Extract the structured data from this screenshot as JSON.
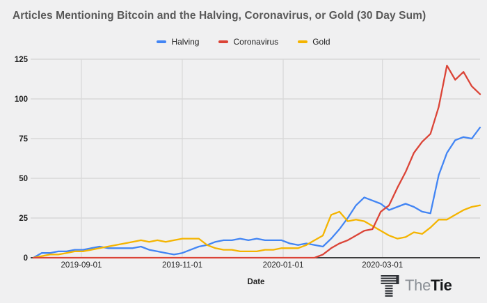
{
  "title": "Articles Mentioning Bitcoin and the Halving, Coronavirus, or Gold (30 Day Sum)",
  "colors": {
    "background": "#f0f0f1",
    "gridline": "#d8d8d8",
    "axis_line": "#3d3d3d",
    "title_text": "#585858",
    "tick_text": "#1f1f1f"
  },
  "footer": {
    "brand_light": "The",
    "brand_bold": "Tie"
  },
  "chart_data": {
    "type": "line",
    "title": "Articles Mentioning Bitcoin and the Halving, Coronavirus, or Gold (30 Day Sum)",
    "xlabel": "Date",
    "ylabel": "",
    "ylim": [
      0,
      125
    ],
    "yticks": [
      0,
      25,
      50,
      75,
      100,
      125
    ],
    "xticks": [
      "2019-09-01",
      "2019-11-01",
      "2020-01-01",
      "2020-03-01"
    ],
    "x_domain": [
      "2019-08-03",
      "2020-04-29"
    ],
    "grid": true,
    "legend_position": "top",
    "x": [
      "2019-08-03",
      "2019-08-08",
      "2019-08-13",
      "2019-08-18",
      "2019-08-23",
      "2019-08-28",
      "2019-09-02",
      "2019-09-07",
      "2019-09-12",
      "2019-09-17",
      "2019-09-22",
      "2019-09-27",
      "2019-10-02",
      "2019-10-07",
      "2019-10-12",
      "2019-10-17",
      "2019-10-22",
      "2019-10-27",
      "2019-11-01",
      "2019-11-06",
      "2019-11-11",
      "2019-11-16",
      "2019-11-21",
      "2019-11-26",
      "2019-12-01",
      "2019-12-06",
      "2019-12-11",
      "2019-12-16",
      "2019-12-21",
      "2019-12-26",
      "2019-12-31",
      "2020-01-05",
      "2020-01-10",
      "2020-01-15",
      "2020-01-20",
      "2020-01-25",
      "2020-01-30",
      "2020-02-04",
      "2020-02-09",
      "2020-02-14",
      "2020-02-19",
      "2020-02-24",
      "2020-02-29",
      "2020-03-05",
      "2020-03-10",
      "2020-03-15",
      "2020-03-20",
      "2020-03-25",
      "2020-03-30",
      "2020-04-04",
      "2020-04-09",
      "2020-04-14",
      "2020-04-19",
      "2020-04-24",
      "2020-04-29"
    ],
    "series": [
      {
        "name": "Halving",
        "color": "#4285F4",
        "values": [
          0,
          3,
          3,
          4,
          4,
          5,
          5,
          6,
          7,
          6,
          6,
          6,
          6,
          7,
          5,
          4,
          3,
          2,
          3,
          5,
          7,
          8,
          10,
          11,
          11,
          12,
          11,
          12,
          11,
          11,
          11,
          9,
          8,
          9,
          8,
          7,
          12,
          18,
          25,
          33,
          38,
          36,
          34,
          30,
          32,
          34,
          32,
          29,
          28,
          52,
          66,
          74,
          76,
          75,
          82
        ]
      },
      {
        "name": "Coronavirus",
        "color": "#DB4437",
        "values": [
          0,
          0,
          0,
          0,
          0,
          0,
          0,
          0,
          0,
          0,
          0,
          0,
          0,
          0,
          0,
          0,
          0,
          0,
          0,
          0,
          0,
          0,
          0,
          0,
          0,
          0,
          0,
          0,
          0,
          0,
          0,
          0,
          0,
          0,
          0,
          2,
          6,
          9,
          11,
          14,
          17,
          18,
          29,
          33,
          44,
          54,
          66,
          73,
          78,
          95,
          121,
          112,
          117,
          108,
          103
        ]
      },
      {
        "name": "Gold",
        "color": "#F4B400",
        "values": [
          0,
          1,
          2,
          2,
          3,
          4,
          4,
          5,
          6,
          7,
          8,
          9,
          10,
          11,
          10,
          11,
          10,
          11,
          12,
          12,
          12,
          8,
          6,
          5,
          5,
          4,
          4,
          4,
          5,
          5,
          6,
          6,
          6,
          8,
          11,
          14,
          27,
          29,
          23,
          24,
          23,
          20,
          17,
          14,
          12,
          13,
          16,
          15,
          19,
          24,
          24,
          27,
          30,
          32,
          33
        ]
      }
    ]
  }
}
